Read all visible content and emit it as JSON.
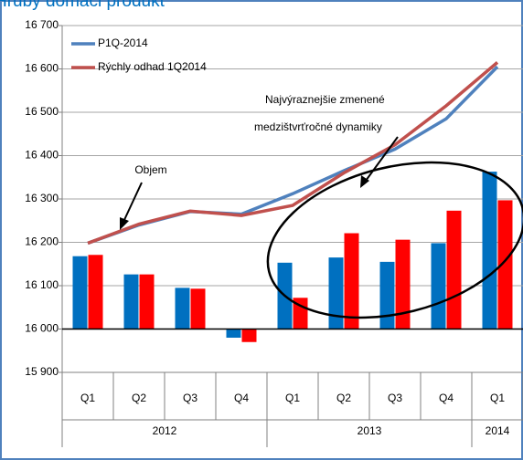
{
  "chart_data": {
    "type": "line_bar",
    "title": "Hrubý domáci produkt",
    "categories": [
      "Q1",
      "Q2",
      "Q3",
      "Q4",
      "Q1",
      "Q2",
      "Q3",
      "Q4",
      "Q1"
    ],
    "category_groups": [
      {
        "label": "2012",
        "span": 4
      },
      {
        "label": "2013",
        "span": 4
      },
      {
        "label": "2014",
        "span": 1
      }
    ],
    "series": [
      {
        "name": "P1Q-2014",
        "color": "#4f81bd",
        "values": [
          16198,
          16240,
          16271,
          16265,
          16312,
          16365,
          16415,
          16485,
          16605
        ]
      },
      {
        "name": "Rýchly odhad 1Q2014",
        "color": "#c0504d",
        "values": [
          16198,
          16242,
          16272,
          16262,
          16285,
          16360,
          16425,
          16515,
          16615
        ]
      }
    ],
    "bar_series": [
      {
        "color": "#0070c0",
        "values": [
          16168,
          16126,
          16095,
          15980,
          16153,
          16165,
          16155,
          16198,
          16363
        ]
      },
      {
        "color": "#ff0000",
        "values": [
          16171,
          16126,
          16093,
          15970,
          16072,
          16221,
          16206,
          16273,
          16297
        ]
      }
    ],
    "bar_baseline": 16000,
    "ylim": [
      15900,
      16700
    ],
    "yticks": [
      {
        "value": 15900,
        "label": "15 900"
      },
      {
        "value": 16000,
        "label": "16 000"
      },
      {
        "value": 16100,
        "label": "16 100"
      },
      {
        "value": 16200,
        "label": "16 200"
      },
      {
        "value": 16300,
        "label": "16 300"
      },
      {
        "value": 16400,
        "label": "16 400"
      },
      {
        "value": 16500,
        "label": "16 500"
      },
      {
        "value": 16600,
        "label": "16 600"
      },
      {
        "value": 16700,
        "label": "16 700"
      }
    ],
    "grid": true,
    "legend": "top-left",
    "annotations": [
      "Objem",
      "Najvýraznejšie zmenené",
      "medzištvrťročné dynamiky"
    ]
  }
}
